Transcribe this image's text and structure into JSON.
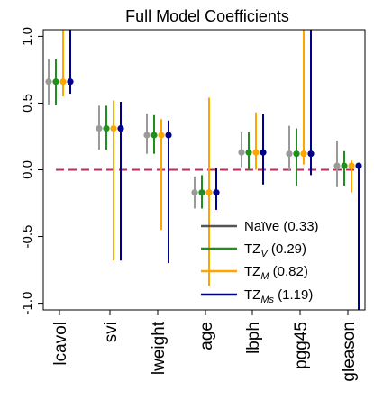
{
  "chart_data": {
    "type": "scatter",
    "title": "Full Model Coefficients",
    "xlabel": "",
    "ylabel": "",
    "ylim": [
      -1.05,
      1.05
    ],
    "yticks": [
      -1.0,
      -0.5,
      0.0,
      0.5,
      1.0
    ],
    "ytick_labels": [
      "-1.0",
      "-0.5",
      "0.0",
      "0.5",
      "1.0"
    ],
    "categories": [
      "lcavol",
      "svi",
      "lweight",
      "age",
      "lbph",
      "pgg45",
      "gleason"
    ],
    "reference_line": {
      "y": 0,
      "color": "#b03060",
      "style": "dashed"
    },
    "legend_position": "bottom-right",
    "series": [
      {
        "name": "Naïve",
        "legend_label": "Naïve (0.33)",
        "color": "#9a9a9a",
        "legend_color": "#555555",
        "estimate": [
          0.66,
          0.31,
          0.26,
          -0.17,
          0.13,
          0.12,
          0.03
        ],
        "lower": [
          0.49,
          0.15,
          0.12,
          -0.29,
          0.02,
          -0.01,
          -0.13
        ],
        "upper": [
          0.83,
          0.48,
          0.42,
          -0.05,
          0.28,
          0.33,
          0.22
        ]
      },
      {
        "name": "TZ_V",
        "legend_label": "TZ_V (0.29)",
        "color": "#1f8f1f",
        "legend_color": "#1f8f1f",
        "estimate": [
          0.66,
          0.31,
          0.26,
          -0.17,
          0.13,
          0.12,
          0.03
        ],
        "lower": [
          0.49,
          0.15,
          0.12,
          -0.29,
          0.0,
          -0.12,
          -0.12
        ],
        "upper": [
          0.83,
          0.48,
          0.41,
          -0.04,
          0.28,
          0.31,
          0.14
        ]
      },
      {
        "name": "TZ_M",
        "legend_label": "TZ_M (0.82)",
        "color": "#ffa500",
        "legend_color": "#ffa500",
        "estimate": [
          0.66,
          0.31,
          0.26,
          -0.17,
          0.13,
          0.12,
          0.03
        ],
        "lower": [
          0.55,
          -0.68,
          -0.45,
          -0.87,
          0.0,
          0.04,
          -0.17
        ],
        "upper": [
          1.1,
          0.52,
          0.38,
          0.54,
          0.43,
          1.1,
          0.07
        ]
      },
      {
        "name": "TZ_Ms",
        "legend_label": "TZ_Ms (1.19)",
        "color": "#00008b",
        "legend_color": "#00008b",
        "estimate": [
          0.66,
          0.31,
          0.26,
          -0.17,
          0.13,
          0.12,
          0.03
        ],
        "lower": [
          0.57,
          -0.68,
          -0.7,
          -0.3,
          -0.11,
          -0.04,
          -1.1
        ],
        "upper": [
          1.1,
          0.51,
          0.37,
          0.01,
          0.42,
          1.1,
          0.04
        ]
      }
    ],
    "legend": [
      {
        "main": "Naïve",
        "sub": "",
        "value": " (0.33)",
        "color": "#555555"
      },
      {
        "main": "TZ",
        "sub": "V",
        "value": " (0.29)",
        "color": "#1f8f1f"
      },
      {
        "main": "TZ",
        "sub": "M",
        "value": " (0.82)",
        "color": "#ffa500"
      },
      {
        "main": "TZ",
        "sub": "Ms",
        "value": " (1.19)",
        "color": "#00008b"
      }
    ]
  }
}
